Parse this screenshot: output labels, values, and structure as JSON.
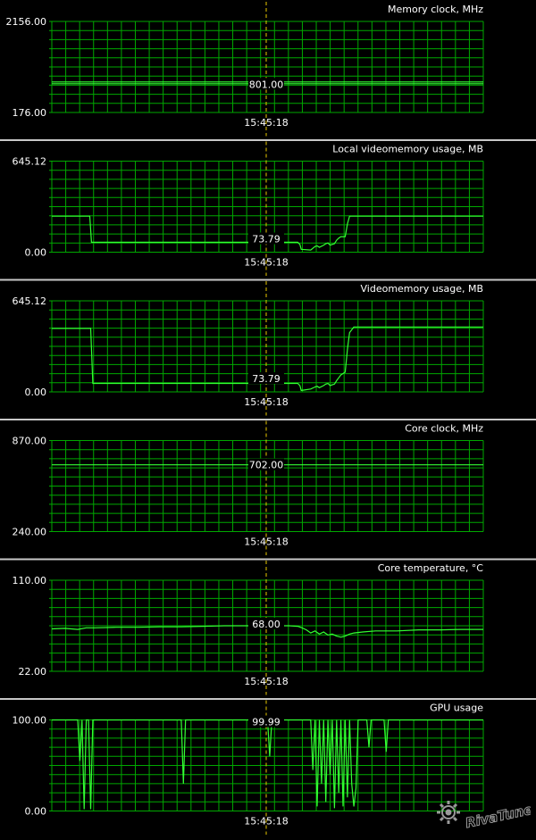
{
  "colors": {
    "background": "#000000",
    "grid": "#00a800",
    "line": "#33ff33",
    "cursor": "#e8c800",
    "text": "#ffffff",
    "separator": "#c8c8c8"
  },
  "cursor_time": "15:45:18",
  "watermark_text": "RivaTuner",
  "chart_data": [
    {
      "type": "line",
      "title": "Memory clock, MHz",
      "ylim": [
        176.0,
        2156.0
      ],
      "ymin_label": "176.00",
      "ymax_label": "2156.00",
      "cursor_value": "801.00",
      "series": [
        {
          "x": [
            0,
            1
          ],
          "values": [
            801,
            801
          ]
        }
      ],
      "series2": [
        {
          "x": [
            0,
            1
          ],
          "values": [
            840,
            840
          ]
        }
      ]
    },
    {
      "type": "line",
      "title": "Local videomemory usage, MB",
      "ylim": [
        0.0,
        645.12
      ],
      "ymin_label": "0.00",
      "ymax_label": "645.12",
      "cursor_value": "73.79",
      "series": [
        {
          "x": [
            0,
            0.088,
            0.092,
            0.57,
            0.575,
            0.578,
            0.6,
            0.61,
            0.615,
            0.62,
            0.63,
            0.635,
            0.64,
            0.645,
            0.65,
            0.655,
            0.66,
            0.665,
            0.67,
            0.68,
            0.685,
            0.69,
            1
          ],
          "values": [
            255,
            255,
            70,
            70,
            55,
            20,
            15,
            40,
            45,
            35,
            50,
            60,
            65,
            50,
            55,
            60,
            85,
            100,
            110,
            110,
            200,
            255,
            255
          ]
        }
      ]
    },
    {
      "type": "line",
      "title": "Videomemory usage, MB",
      "ylim": [
        0.0,
        645.12
      ],
      "ymin_label": "0.00",
      "ymax_label": "645.12",
      "cursor_value": "73.79",
      "series": [
        {
          "x": [
            0,
            0.09,
            0.095,
            0.57,
            0.575,
            0.578,
            0.6,
            0.61,
            0.615,
            0.62,
            0.63,
            0.635,
            0.64,
            0.645,
            0.65,
            0.655,
            0.66,
            0.665,
            0.67,
            0.68,
            0.685,
            0.69,
            0.7,
            1
          ],
          "values": [
            450,
            450,
            60,
            60,
            45,
            10,
            20,
            35,
            40,
            30,
            45,
            55,
            60,
            45,
            50,
            55,
            80,
            100,
            120,
            140,
            300,
            420,
            460,
            460
          ]
        }
      ]
    },
    {
      "type": "line",
      "title": "Core clock, MHz",
      "ylim": [
        240.0,
        870.0
      ],
      "ymin_label": "240.00",
      "ymax_label": "870.00",
      "cursor_value": "702.00",
      "series": [
        {
          "x": [
            0,
            1
          ],
          "values": [
            702,
            702
          ]
        }
      ]
    },
    {
      "type": "line",
      "title": "Core temperature, °C",
      "ylim": [
        22.0,
        110.0
      ],
      "ymin_label": "22.00",
      "ymax_label": "110.00",
      "cursor_value": "68.00",
      "series": [
        {
          "x": [
            0,
            0.03,
            0.06,
            0.08,
            0.1,
            0.15,
            0.2,
            0.25,
            0.3,
            0.35,
            0.4,
            0.45,
            0.5,
            0.55,
            0.57,
            0.58,
            0.59,
            0.6,
            0.61,
            0.62,
            0.63,
            0.64,
            0.65,
            0.66,
            0.67,
            0.68,
            0.69,
            0.7,
            0.72,
            0.75,
            0.8,
            0.85,
            0.9,
            0.95,
            1
          ],
          "values": [
            63,
            63.5,
            62.5,
            64,
            64,
            64.5,
            64.5,
            65,
            65,
            65.5,
            66,
            66,
            66,
            66,
            65.5,
            64,
            62,
            59,
            61,
            58,
            60,
            57,
            58,
            56,
            55,
            56,
            58,
            59,
            60,
            61,
            61,
            62,
            62,
            62.5,
            62.5
          ]
        }
      ]
    },
    {
      "type": "line",
      "title": "GPU usage",
      "ylim": [
        0.0,
        100.0
      ],
      "ymin_label": "0.00",
      "ymax_label": "100.00",
      "cursor_value": "99.99",
      "series": [
        {
          "x": [
            0,
            0.06,
            0.065,
            0.07,
            0.075,
            0.08,
            0.085,
            0.09,
            0.095,
            0.1,
            0.3,
            0.305,
            0.31,
            0.315,
            0.32,
            0.5,
            0.505,
            0.51,
            0.6,
            0.605,
            0.61,
            0.615,
            0.62,
            0.625,
            0.63,
            0.635,
            0.64,
            0.645,
            0.65,
            0.655,
            0.66,
            0.665,
            0.67,
            0.675,
            0.68,
            0.685,
            0.69,
            0.695,
            0.7,
            0.705,
            0.71,
            0.72,
            0.73,
            0.735,
            0.74,
            0.745,
            0.75,
            0.76,
            0.77,
            0.775,
            0.78,
            0.79,
            1
          ],
          "values": [
            100,
            100,
            55,
            100,
            2,
            100,
            100,
            2,
            100,
            100,
            100,
            30,
            100,
            100,
            100,
            100,
            60,
            100,
            100,
            45,
            100,
            5,
            100,
            30,
            100,
            10,
            100,
            40,
            100,
            3,
            100,
            20,
            100,
            5,
            100,
            15,
            100,
            30,
            5,
            25,
            100,
            100,
            100,
            70,
            100,
            100,
            100,
            100,
            100,
            65,
            100,
            100,
            100
          ]
        }
      ]
    }
  ]
}
